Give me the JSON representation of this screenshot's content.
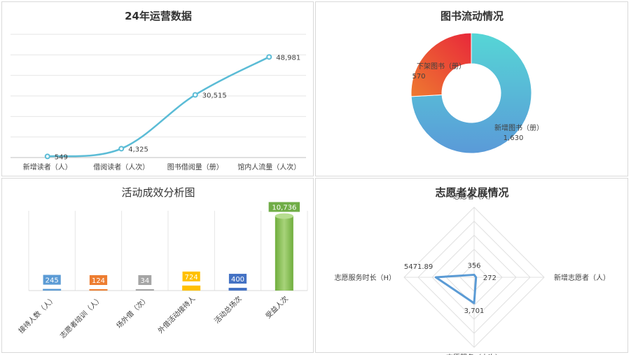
{
  "chart_data": [
    {
      "type": "line",
      "title": "24年运营数据",
      "categories": [
        "新增读者（人）",
        "借阅读者（人次）",
        "图书借阅量（册）",
        "馆内人流量（人次）"
      ],
      "values": [
        549,
        4325,
        30515,
        48981
      ],
      "value_labels": [
        "549",
        "4,325",
        "30,515",
        "48,981"
      ],
      "ylim": [
        0,
        60000
      ],
      "grid": true,
      "color": "#5bbcd6"
    },
    {
      "type": "pie",
      "title": "图书流动情况",
      "labels": [
        "新增图书（册）",
        "下架图书（册）"
      ],
      "values": [
        1630,
        570
      ],
      "value_labels": [
        "1,630",
        "570"
      ],
      "colors": [
        "#4fb3d9",
        "#ef5a2a"
      ]
    },
    {
      "type": "bar",
      "title": "活动成效分析图",
      "categories": [
        "接待人数（人）",
        "志愿者培训（人）",
        "场外借（次）",
        "外借活动接待人",
        "活动总场次",
        "受益人次"
      ],
      "values": [
        245,
        124,
        34,
        724,
        400,
        10736
      ],
      "value_labels": [
        "245",
        "124",
        "34",
        "724",
        "400",
        "10,736"
      ],
      "colors": [
        "#5b9bd5",
        "#ed7d31",
        "#a5a5a5",
        "#ffc000",
        "#4472c4",
        "#70ad47"
      ],
      "ylim": [
        0,
        11500
      ]
    },
    {
      "type": "radar",
      "title": "志愿者发展情况",
      "axes": [
        "志愿者（人）",
        "新增志愿者（人）",
        "志愿服务（人次）",
        "志愿服务时长（H）"
      ],
      "values": [
        356,
        272,
        3701,
        5471.89
      ],
      "value_labels": [
        "356",
        "272",
        "3,701",
        "5471.89"
      ],
      "rmax": 10000,
      "color": "#5b9bd5"
    }
  ]
}
